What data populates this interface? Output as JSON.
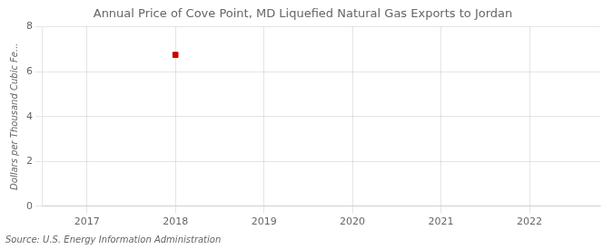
{
  "chart_data": {
    "type": "scatter",
    "title": "Annual Price of Cove Point, MD Liquefied Natural Gas Exports to Jordan",
    "ylabel": "Dollars per Thousand Cubic Fe...",
    "annotation": "Source: U.S. Energy Information Administration",
    "x": [
      2018
    ],
    "values": [
      6.75
    ],
    "color": "#cc0000",
    "marker": "square",
    "xlim": [
      2016.5,
      2022.8
    ],
    "xticks": [
      2017,
      2018,
      2019,
      2020,
      2021,
      2022
    ],
    "ylim": [
      0,
      8
    ],
    "yticks": [
      0,
      2,
      4,
      6,
      8
    ],
    "grid": true
  }
}
